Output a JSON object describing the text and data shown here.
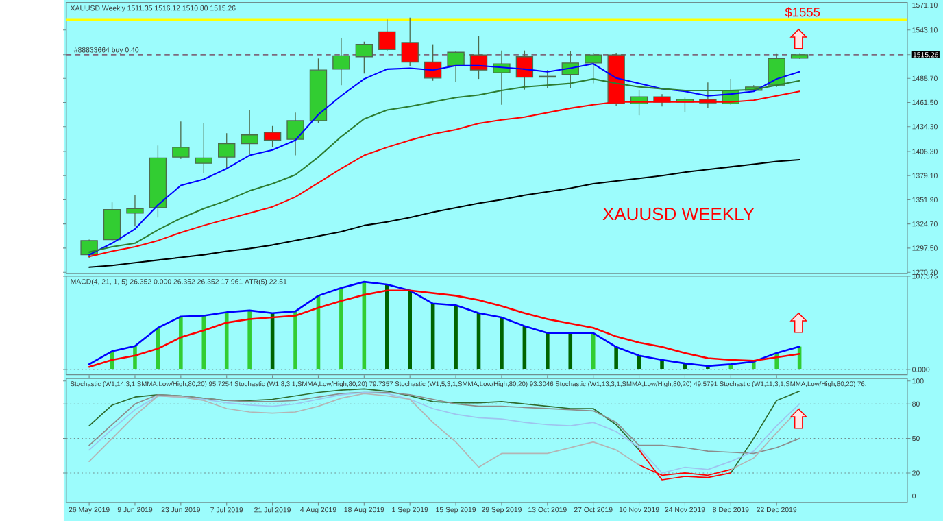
{
  "chart_data": [
    {
      "type": "candlestick",
      "title": "XAUUSD,Weekly  1511.35 1516.12 1510.80 1515.26",
      "categories": [
        null,
        null,
        null,
        null,
        null,
        null,
        null,
        null,
        null,
        null,
        null,
        null,
        null,
        null,
        null,
        null,
        null,
        null,
        null,
        null,
        null,
        null,
        null,
        null,
        null,
        null,
        null,
        null,
        null,
        null,
        null,
        null
      ],
      "ohlc": [
        [
          1290,
          1307,
          1286,
          1306
        ],
        [
          1307,
          1349,
          1305,
          1341
        ],
        [
          1337,
          1357,
          1322,
          1342
        ],
        [
          1343,
          1413,
          1332,
          1399
        ],
        [
          1400,
          1440,
          1398,
          1411
        ],
        [
          1393,
          1438,
          1382,
          1399
        ],
        [
          1400,
          1427,
          1387,
          1415
        ],
        [
          1415,
          1453,
          1404,
          1425
        ],
        [
          1428,
          1435,
          1411,
          1419
        ],
        [
          1420,
          1450,
          1402,
          1441
        ],
        [
          1441,
          1511,
          1438,
          1498
        ],
        [
          1499,
          1534,
          1481,
          1514
        ],
        [
          1513,
          1530,
          1494,
          1527
        ],
        [
          1541,
          1555,
          1519,
          1521
        ],
        [
          1529,
          1557,
          1502,
          1507
        ],
        [
          1507,
          1527,
          1486,
          1489
        ],
        [
          1503,
          1519,
          1485,
          1518
        ],
        [
          1515,
          1536,
          1488,
          1498
        ],
        [
          1495,
          1520,
          1459,
          1505
        ],
        [
          1513,
          1520,
          1476,
          1490
        ],
        [
          1490,
          1498,
          1478,
          1491
        ],
        [
          1493,
          1519,
          1478,
          1506
        ],
        [
          1506,
          1517,
          1483,
          1515
        ],
        [
          1515,
          1517,
          1458,
          1460
        ],
        [
          1460,
          1475,
          1447,
          1468
        ],
        [
          1468,
          1471,
          1457,
          1462
        ],
        [
          1462,
          1467,
          1451,
          1465
        ],
        [
          1465,
          1484,
          1455,
          1461
        ],
        [
          1460,
          1488,
          1459,
          1475
        ],
        [
          1475,
          1481,
          1475,
          1479
        ],
        [
          1481,
          1516,
          1479,
          1511
        ],
        [
          1511.35,
          1516.12,
          1510.8,
          1515.26
        ]
      ],
      "colors": [
        "#32cd32",
        "#32cd32",
        "#32cd32",
        "#32cd32",
        "#32cd32",
        "#32cd32",
        "#32cd32",
        "#32cd32",
        "#ff0000",
        "#32cd32",
        "#32cd32",
        "#32cd32",
        "#32cd32",
        "#ff0000",
        "#ff0000",
        "#ff0000",
        "#32cd32",
        "#ff0000",
        "#32cd32",
        "#ff0000",
        "#000000",
        "#32cd32",
        "#32cd32",
        "#ff0000",
        "#32cd32",
        "#ff0000",
        "#32cd32",
        "#ff0000",
        "#32cd32",
        "#32cd32",
        "#32cd32",
        "#32cd32"
      ],
      "series": [
        {
          "type": "line",
          "color": "#0000ff",
          "values": [
            1290,
            1303,
            1319,
            1346,
            1368,
            1375,
            1387,
            1402,
            1408,
            1419,
            1448,
            1469,
            1488,
            1499,
            1500,
            1498,
            1503,
            1503,
            1501,
            1499,
            1496,
            1500,
            1505,
            1489,
            1483,
            1477,
            1474,
            1469,
            1471,
            1474,
            1488,
            1496
          ]
        },
        {
          "type": "line",
          "color": "#2e7d32",
          "values": [
            1293,
            1299,
            1303,
            1318,
            1331,
            1342,
            1351,
            1362,
            1370,
            1380,
            1400,
            1423,
            1443,
            1453,
            1457,
            1462,
            1467,
            1470,
            1475,
            1479,
            1481,
            1483,
            1488,
            1483,
            1479,
            1477,
            1475,
            1475,
            1475,
            1476,
            1481,
            1486
          ]
        },
        {
          "type": "line",
          "color": "#ff0000",
          "values": [
            1288,
            1294,
            1299,
            1306,
            1315,
            1323,
            1330,
            1337,
            1344,
            1355,
            1371,
            1387,
            1402,
            1411,
            1419,
            1426,
            1431,
            1438,
            1442,
            1445,
            1450,
            1455,
            1459,
            1462,
            1462,
            1462,
            1462,
            1462,
            1462,
            1464,
            1469,
            1474
          ]
        },
        {
          "type": "line",
          "color": "#000000",
          "values": [
            1276,
            1278,
            1281,
            1284,
            1287,
            1290,
            1294,
            1297,
            1301,
            1306,
            1311,
            1316,
            1323,
            1327,
            1332,
            1338,
            1343,
            1348,
            1352,
            1357,
            1361,
            1365,
            1370,
            1373,
            1376,
            1379,
            1383,
            1386,
            1389,
            1392,
            1395,
            1397
          ]
        }
      ],
      "ylim": [
        1268.8,
        1574
      ],
      "yticks": [
        {
          "value": 1270.2,
          "label": "1270.20"
        },
        {
          "value": 1297.5,
          "label": "1297.50"
        },
        {
          "value": 1324.7,
          "label": "1324.70"
        },
        {
          "value": 1351.9,
          "label": "1351.90"
        },
        {
          "value": 1379.1,
          "label": "1379.10"
        },
        {
          "value": 1406.3,
          "label": "1406.30"
        },
        {
          "value": 1434.3,
          "label": "1434.30"
        },
        {
          "value": 1461.5,
          "label": "1461.50"
        },
        {
          "value": 1488.7,
          "label": "1488.70"
        },
        {
          "value": 1515.26,
          "label": "1515.26"
        },
        {
          "value": 1543.1,
          "label": "1543.10"
        },
        {
          "value": 1571.1,
          "label": "1571.10"
        }
      ],
      "ref_lines": [
        {
          "axis": "y",
          "value": 1555,
          "label": "$1555",
          "color": "#ffff00",
          "line_style": "solid"
        },
        {
          "axis": "y",
          "value": 1515.26,
          "label": "#88833664 buy 0.40",
          "color": "#7d6a7d",
          "line_style": "dashed"
        }
      ],
      "annotations": [
        "XAUUSD WEEKLY"
      ],
      "tick_labels": "y"
    },
    {
      "type": "bar",
      "title": "MACD(4, 21, 1, 5) 26.352 0.000 26.352 26.352 17.961  ATR(5) 22.51",
      "categories": [
        null,
        null,
        null,
        null,
        null,
        null,
        null,
        null,
        null,
        null,
        null,
        null,
        null,
        null,
        null,
        null,
        null,
        null,
        null,
        null,
        null,
        null,
        null,
        null,
        null,
        null,
        null,
        null,
        null,
        null,
        null,
        null
      ],
      "series": [
        {
          "type": "bar",
          "colors": [
            "#32cd32",
            "#32cd32",
            "#32cd32",
            "#32cd32",
            "#32cd32",
            "#32cd32",
            "#32cd32",
            "#32cd32",
            "#006400",
            "#32cd32",
            "#32cd32",
            "#32cd32",
            "#32cd32",
            "#006400",
            "#006400",
            "#006400",
            "#006400",
            "#006400",
            "#006400",
            "#006400",
            "#006400",
            "#006400",
            "#32cd32",
            "#006400",
            "#006400",
            "#006400",
            "#006400",
            "#006400",
            "#32cd32",
            "#32cd32",
            "#32cd32",
            "#32cd32"
          ],
          "values": [
            null,
            21,
            27,
            48,
            61,
            62,
            66,
            68,
            65,
            67,
            85,
            94,
            101,
            98,
            91,
            76,
            74,
            65,
            60,
            50,
            42,
            42,
            42,
            26,
            16,
            11,
            7,
            4,
            6,
            9,
            19,
            26.352
          ]
        },
        {
          "type": "line",
          "color": "#0000ff",
          "values": [
            6,
            21,
            27,
            48,
            61,
            62,
            66,
            68,
            65,
            67,
            85,
            94,
            101,
            98,
            91,
            76,
            74,
            65,
            60,
            50,
            42,
            42,
            42,
            26,
            16,
            11,
            7,
            4,
            6,
            9,
            19,
            26.352
          ]
        },
        {
          "type": "line",
          "color": "#ff0000",
          "values": [
            3,
            11,
            16,
            24,
            37,
            45,
            54,
            58,
            60,
            62,
            71,
            79,
            86,
            91,
            91,
            88,
            85,
            80,
            73,
            65,
            58,
            53,
            48,
            38,
            31,
            26,
            19,
            13,
            11,
            10,
            14,
            17.961
          ]
        }
      ],
      "ylim": [
        -5.9,
        107.575
      ],
      "yticks": [
        {
          "value": 0,
          "label": "0.000"
        },
        {
          "value": 107.575,
          "label": "107.575"
        }
      ],
      "ref_lines": [
        {
          "axis": "y",
          "value": 0,
          "color": "#6f8f8f",
          "line_style": "dotted"
        }
      ],
      "tick_labels": "y"
    },
    {
      "type": "line",
      "title": "Stochastic (W1,14,3,1,SMMA,Low/High,80,20) 95.7254  Stochastic (W1,8,3,1,SMMA,Low/High,80,20) 79.7357  Stochastic (W1,5,3,1,SMMA,Low/High,80,20) 93.3046  Stochastic (W1,13,3,1,SMMA,Low/High,80,20) 49.5791  Stochastic (W1,11,3,1,SMMA,Low/High,80,20) 76.",
      "categories": [
        "26 May 2019",
        null,
        "9 Jun 2019",
        null,
        "23 Jun 2019",
        null,
        "7 Jul 2019",
        null,
        "21 Jul 2019",
        null,
        "4 Aug 2019",
        null,
        "18 Aug 2019",
        null,
        "1 Sep 2019",
        null,
        "15 Sep 2019",
        null,
        "29 Sep 2019",
        null,
        "13 Oct 2019",
        null,
        "27 Oct 2019",
        null,
        "10 Nov 2019",
        null,
        "24 Nov 2019",
        null,
        "8 Dec 2019",
        null,
        "22 Dec 2019",
        null
      ],
      "series": [
        {
          "color": "#2e6b2e",
          "values": [
            61,
            79,
            86,
            88,
            87,
            85,
            83,
            83,
            84,
            87,
            90,
            92,
            93,
            91,
            87,
            82,
            81,
            81,
            82,
            80,
            78,
            76,
            76,
            62,
            40,
            null,
            null,
            null,
            20,
            50,
            83,
            91
          ]
        },
        {
          "color": "#8c8c8c",
          "values": [
            44,
            62,
            80,
            88,
            87,
            85,
            83,
            82,
            82,
            83,
            86,
            89,
            90,
            90,
            88,
            84,
            80,
            78,
            78,
            77,
            76,
            75,
            74,
            64,
            44,
            44,
            42,
            39,
            38,
            37,
            42,
            50
          ]
        },
        {
          "color": "#9fc3ee",
          "values": [
            40,
            58,
            75,
            87,
            86,
            84,
            81,
            79,
            78,
            80,
            84,
            88,
            90,
            89,
            84,
            76,
            71,
            68,
            67,
            64,
            62,
            61,
            64,
            56,
            42,
            20,
            25,
            23,
            30,
            39,
            61,
            80
          ]
        },
        {
          "color": "#b4b4b4",
          "values": [
            30,
            50,
            70,
            87,
            86,
            83,
            76,
            73,
            72,
            73,
            78,
            85,
            89,
            87,
            84,
            64,
            47,
            25,
            37,
            37,
            37,
            42,
            47,
            40,
            27,
            null,
            null,
            null,
            23,
            33,
            55,
            76
          ]
        },
        {
          "color": "#ff0000",
          "values": [
            null,
            null,
            null,
            null,
            null,
            null,
            null,
            null,
            null,
            null,
            null,
            null,
            null,
            null,
            null,
            null,
            null,
            null,
            null,
            null,
            null,
            null,
            null,
            null,
            40,
            14,
            17,
            16,
            20,
            null,
            null,
            null
          ]
        },
        {
          "color": "#ff0000",
          "values": [
            null,
            null,
            null,
            null,
            null,
            null,
            null,
            null,
            null,
            null,
            null,
            null,
            null,
            null,
            null,
            null,
            null,
            null,
            null,
            null,
            null,
            null,
            null,
            null,
            27,
            18,
            20,
            18,
            23,
            null,
            null,
            null
          ]
        }
      ],
      "ylim": [
        -5.6,
        102.2
      ],
      "yticks": [
        0,
        20,
        50,
        80,
        100
      ],
      "ref_lines": [
        {
          "axis": "y",
          "value": 80,
          "color": "#6f8f8f",
          "line_style": "dotted"
        },
        {
          "axis": "y",
          "value": 50,
          "color": "#6f8f8f",
          "line_style": "dotted"
        },
        {
          "axis": "y",
          "value": 20,
          "color": "#6f8f8f",
          "line_style": "dotted"
        }
      ]
    }
  ]
}
